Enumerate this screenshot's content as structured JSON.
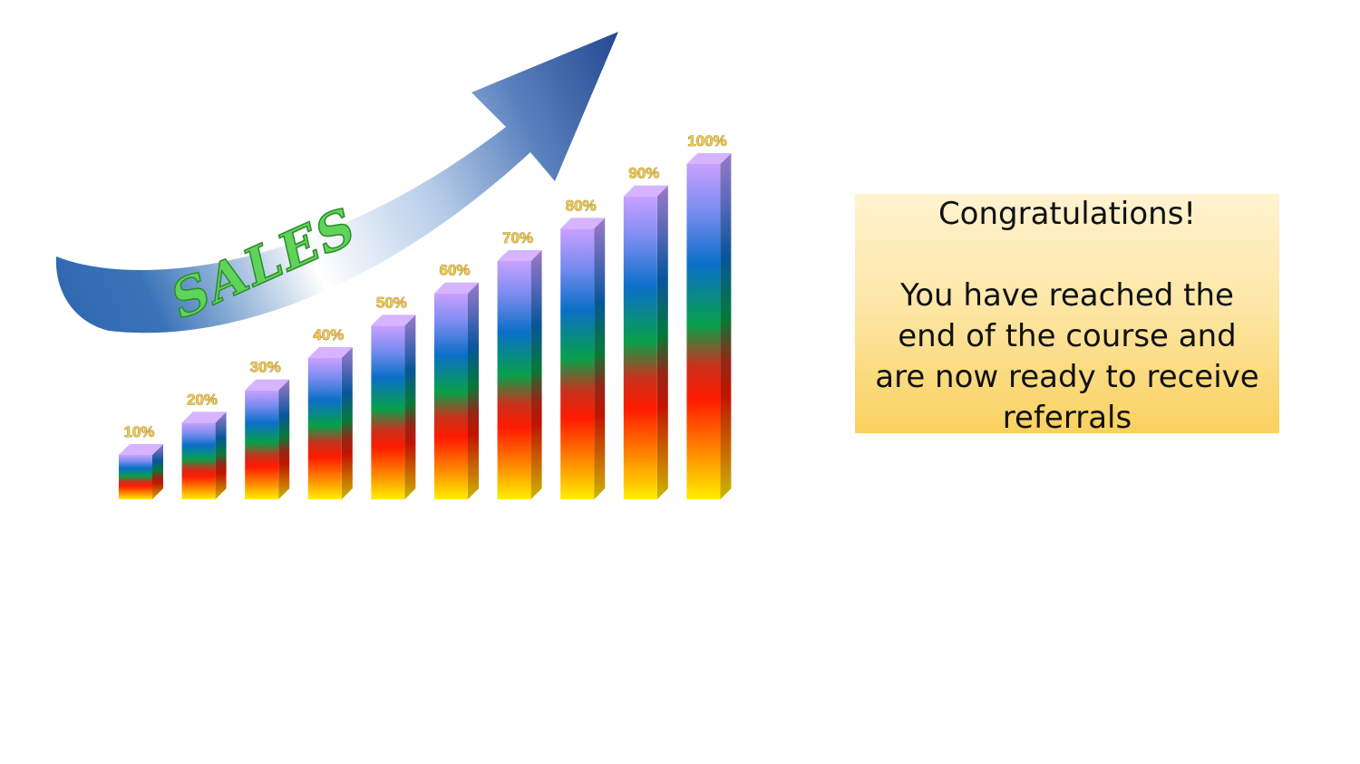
{
  "chart_data": {
    "type": "bar",
    "categories": [
      "10%",
      "20%",
      "30%",
      "40%",
      "50%",
      "60%",
      "70%",
      "80%",
      "90%",
      "100%"
    ],
    "values": [
      10,
      20,
      30,
      40,
      50,
      60,
      70,
      80,
      90,
      100
    ],
    "data_labels": [
      "10%",
      "20%",
      "30%",
      "40%",
      "50%",
      "60%",
      "70%",
      "80%",
      "90%",
      "100%"
    ],
    "ylim": [
      0,
      100
    ],
    "grid": false,
    "legend": "none",
    "bar_style": "3d rainbow gradient (yellow, orange, red, green, blue, violet)",
    "label_color": "#f2c94c"
  },
  "arrow": {
    "label": "SALES",
    "label_color": "#5fd35a",
    "color_dark": "#2b4f95",
    "color_light": "#ffffff"
  },
  "message_box": {
    "heading": "Congratulations!",
    "body": "You have reached the end of the course and are now ready to receive referrals",
    "background_top": "#fff3d0",
    "background_bottom": "#f9d15f"
  }
}
